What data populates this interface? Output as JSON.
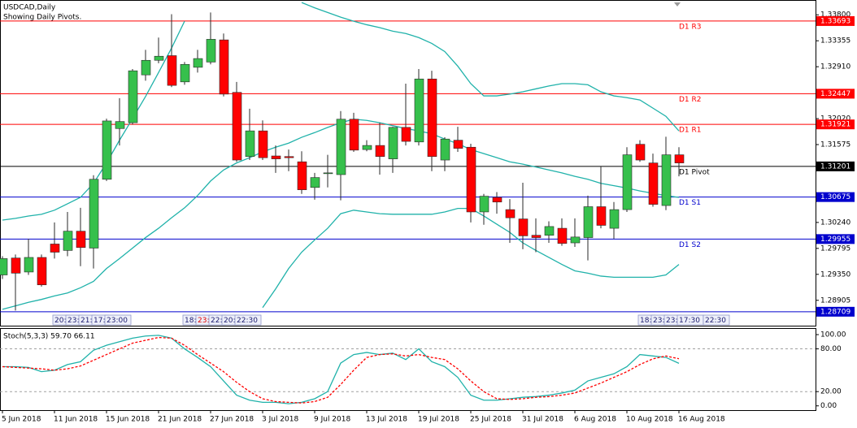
{
  "chart_data": [
    {
      "type": "candlestick",
      "title": "USDCAD,Daily",
      "subtitle": "Showing Daily Pivots.",
      "categories": [
        "5 Jun 2018",
        null,
        null,
        null,
        "11 Jun 2018",
        null,
        null,
        null,
        "15 Jun 2018",
        null,
        null,
        null,
        "21 Jun 2018",
        null,
        null,
        null,
        "27 Jun 2018",
        null,
        null,
        null,
        "3 Jul 2018",
        null,
        null,
        null,
        "9 Jul 2018",
        null,
        null,
        null,
        "13 Jul 2018",
        null,
        null,
        null,
        "19 Jul 2018",
        null,
        null,
        null,
        "25 Jul 2018",
        null,
        null,
        null,
        "31 Jul 2018",
        null,
        null,
        null,
        "6 Aug 2018",
        null,
        null,
        null,
        "10 Aug 2018",
        null,
        null,
        null,
        "16 Aug 2018"
      ],
      "open": [
        1.2934,
        1.2963,
        1.2939,
        1.2964,
        1.2987,
        1.2976,
        1.3009,
        1.298,
        1.3098,
        1.3185,
        1.3195,
        1.3277,
        1.3302,
        1.331,
        1.3265,
        1.329,
        1.3299,
        1.3337,
        1.3247,
        1.3137,
        1.3181,
        1.3138,
        1.3137,
        1.3128,
        1.3084,
        1.3108,
        1.3106,
        1.3201,
        1.3149,
        1.3156,
        1.3133,
        1.3187,
        1.3162,
        1.327,
        1.3131,
        1.3165,
        1.3153,
        1.3042,
        1.3067,
        1.3046,
        1.303,
        1.3002,
        1.3002,
        1.3014,
        1.2989,
        1.2998,
        1.3051,
        1.3014,
        1.3046,
        1.3158,
        1.3126,
        1.3053,
        1.314
      ],
      "high": [
        1.2966,
        1.2969,
        1.2996,
        1.2969,
        1.3024,
        1.3042,
        1.3049,
        1.3105,
        1.3202,
        1.3237,
        1.3287,
        1.332,
        1.3341,
        1.3381,
        1.3299,
        1.332,
        1.3384,
        1.3348,
        1.3265,
        1.3219,
        1.3199,
        1.3156,
        1.3149,
        1.3146,
        1.3109,
        1.314,
        1.3215,
        1.3212,
        1.3165,
        1.3195,
        1.3188,
        1.3262,
        1.3287,
        1.3284,
        1.317,
        1.3188,
        1.3159,
        1.3073,
        1.3076,
        1.3064,
        1.3092,
        1.3031,
        1.3026,
        1.3031,
        1.3031,
        1.307,
        1.312,
        1.3059,
        1.3153,
        1.3165,
        1.3142,
        1.3171,
        1.3153
      ],
      "low": [
        1.2927,
        1.2873,
        1.2934,
        1.2914,
        1.2962,
        1.2966,
        1.2949,
        1.2945,
        1.3095,
        1.3156,
        1.3192,
        1.3267,
        1.3297,
        1.3256,
        1.326,
        1.3281,
        1.3295,
        1.324,
        1.3128,
        1.3131,
        1.3131,
        1.3109,
        1.3112,
        1.3073,
        1.3063,
        1.3084,
        1.3062,
        1.3145,
        1.3146,
        1.3106,
        1.3109,
        1.3156,
        1.3156,
        1.3112,
        1.3112,
        1.3145,
        1.3024,
        1.302,
        1.3039,
        1.2989,
        1.2978,
        1.2973,
        1.2989,
        1.2984,
        1.2982,
        1.2959,
        1.3014,
        1.2996,
        1.3042,
        1.3128,
        1.3051,
        1.3045,
        1.3103
      ],
      "close": [
        1.2962,
        1.2937,
        1.2964,
        1.2917,
        1.2973,
        1.3009,
        1.2981,
        1.3098,
        1.3198,
        1.3197,
        1.3284,
        1.3302,
        1.3309,
        1.3259,
        1.3295,
        1.3305,
        1.3338,
        1.3244,
        1.3131,
        1.3181,
        1.3135,
        1.3133,
        1.3135,
        1.308,
        1.3101,
        1.3109,
        1.3201,
        1.3148,
        1.3156,
        1.3137,
        1.3187,
        1.3163,
        1.327,
        1.3137,
        1.3167,
        1.3151,
        1.3042,
        1.3069,
        1.3059,
        1.3032,
        1.3001,
        1.2998,
        1.3017,
        1.2988,
        1.2999,
        1.3051,
        1.3019,
        1.3046,
        1.314,
        1.3131,
        1.3055,
        1.314,
        1.3126
      ],
      "up_color": "#36c04c",
      "down_color": "#ff0000",
      "wick_color": "#2a2a2a",
      "overlays": [
        {
          "color": "#20b2aa",
          "values": [
            1.3028,
            1.3031,
            1.3035,
            1.3038,
            1.3045,
            1.3056,
            1.3067,
            1.3091,
            1.3126,
            1.3165,
            1.3202,
            1.324,
            1.3281,
            1.3323,
            1.3369,
            null,
            null,
            null,
            null,
            null,
            null,
            null,
            null,
            1.3401,
            1.3392,
            1.3384,
            1.3376,
            1.3369,
            1.3363,
            1.3358,
            1.3352,
            1.3348,
            1.3341,
            1.3331,
            1.3317,
            1.3292,
            1.3262,
            1.3241,
            1.3241,
            1.3244,
            1.3248,
            1.3253,
            1.3258,
            1.3262,
            1.3262,
            1.326,
            1.3248,
            1.3241,
            1.3238,
            1.3234,
            1.322,
            1.3206,
            1.3181
          ]
        },
        {
          "color": "#20b2aa",
          "values": [
            1.2875,
            1.2881,
            1.2887,
            1.2892,
            1.2898,
            1.2903,
            1.2912,
            1.2923,
            1.2945,
            1.2962,
            1.298,
            1.2998,
            1.3014,
            1.3032,
            1.3049,
            1.307,
            1.3095,
            1.3114,
            1.3126,
            1.3135,
            1.3145,
            1.3153,
            1.316,
            1.317,
            1.3178,
            1.3187,
            1.3195,
            1.3201,
            1.3199,
            1.3195,
            1.319,
            1.3185,
            1.3181,
            1.3176,
            1.3167,
            1.3159,
            1.3149,
            1.3142,
            1.3135,
            1.3128,
            1.3124,
            1.3119,
            1.3114,
            1.3109,
            1.3103,
            1.3098,
            1.3091,
            1.3087,
            1.3083,
            1.3078,
            1.3074,
            1.307,
            1.3067
          ]
        },
        {
          "color": "#20b2aa",
          "values": [
            null,
            null,
            null,
            null,
            null,
            null,
            null,
            null,
            null,
            null,
            null,
            null,
            null,
            null,
            null,
            null,
            null,
            null,
            null,
            null,
            1.2878,
            1.291,
            1.2945,
            1.2973,
            1.2994,
            1.3014,
            1.3039,
            1.3045,
            1.3042,
            1.3039,
            1.3038,
            1.3038,
            1.3038,
            1.3038,
            1.3042,
            1.3048,
            1.3048,
            1.3035,
            1.3021,
            1.3007,
            1.2989,
            1.2976,
            1.2964,
            1.2952,
            1.2941,
            1.2937,
            1.2932,
            1.293,
            1.293,
            1.293,
            1.293,
            1.2934,
            1.2952
          ]
        }
      ],
      "pivots": [
        {
          "label": "D1 R3",
          "value": 1.33693,
          "color": "#ff0000"
        },
        {
          "label": "D1 R2",
          "value": 1.32447,
          "color": "#ff0000"
        },
        {
          "label": "D1 R1",
          "value": 1.31921,
          "color": "#ff0000"
        },
        {
          "label": "D1 Pivot",
          "value": 1.31201,
          "color": "#000000"
        },
        {
          "label": "D1 S1",
          "value": 1.30675,
          "color": "#0000cd"
        },
        {
          "label": "D1 S2",
          "value": 1.29955,
          "color": "#0000cd"
        },
        {
          "value": 1.28709,
          "color": "#0000cd"
        }
      ],
      "session_labels": [
        [
          "20:",
          "23:",
          "21:",
          "17:",
          "23:00"
        ],
        [
          "18:",
          "23:",
          "22:",
          "20:",
          "22:30"
        ],
        [
          "18:",
          "23:",
          "23:",
          "17:30"
        ],
        [
          "22:30"
        ]
      ],
      "ylim": [
        1.2847,
        1.3404
      ],
      "yticks": [
        {
          "value": 1.338,
          "label": "1.33800"
        },
        {
          "value": 1.33355,
          "label": "1.33355"
        },
        {
          "value": 1.3291,
          "label": "1.32910"
        },
        {
          "value": 1.3202,
          "label": "1.32020"
        },
        {
          "value": 1.31575,
          "label": "1.31575"
        },
        {
          "value": 1.3024,
          "label": "1.30240"
        },
        {
          "value": 1.29795,
          "label": "1.29795"
        },
        {
          "value": 1.2935,
          "label": "1.29350"
        },
        {
          "value": 1.28905,
          "label": "1.28905"
        }
      ]
    },
    {
      "type": "line",
      "title": "Stoch(5,3,3) 59.70 66.11",
      "series": [
        {
          "color": "#20b2aa",
          "values": [
            55,
            55,
            54,
            48,
            50,
            58,
            62,
            78,
            85,
            90,
            95,
            98,
            99,
            95,
            80,
            68,
            55,
            35,
            15,
            8,
            5,
            5,
            3,
            5,
            10,
            20,
            60,
            72,
            75,
            72,
            74,
            65,
            80,
            62,
            55,
            40,
            15,
            8,
            8,
            10,
            12,
            13,
            15,
            18,
            22,
            35,
            40,
            45,
            55,
            72,
            70,
            68,
            59.7
          ]
        },
        {
          "color": "#ff0000",
          "dashed": true,
          "values": [
            55,
            54,
            53,
            52,
            50,
            52,
            56,
            64,
            72,
            80,
            88,
            92,
            96,
            95,
            85,
            72,
            60,
            48,
            33,
            20,
            10,
            6,
            5,
            4,
            6,
            12,
            30,
            50,
            68,
            72,
            73,
            70,
            72,
            68,
            65,
            52,
            35,
            20,
            10,
            9,
            10,
            12,
            13,
            15,
            18,
            25,
            32,
            40,
            48,
            58,
            66,
            70,
            66.11
          ]
        }
      ],
      "levels": [
        80,
        20
      ],
      "ylim": [
        -6,
        108
      ],
      "yticks": [
        {
          "value": 100,
          "label": "100.00"
        },
        {
          "value": 80,
          "label": "80.00"
        },
        {
          "value": 20,
          "label": "20.00"
        },
        {
          "value": 0,
          "label": "0.00"
        }
      ]
    }
  ]
}
